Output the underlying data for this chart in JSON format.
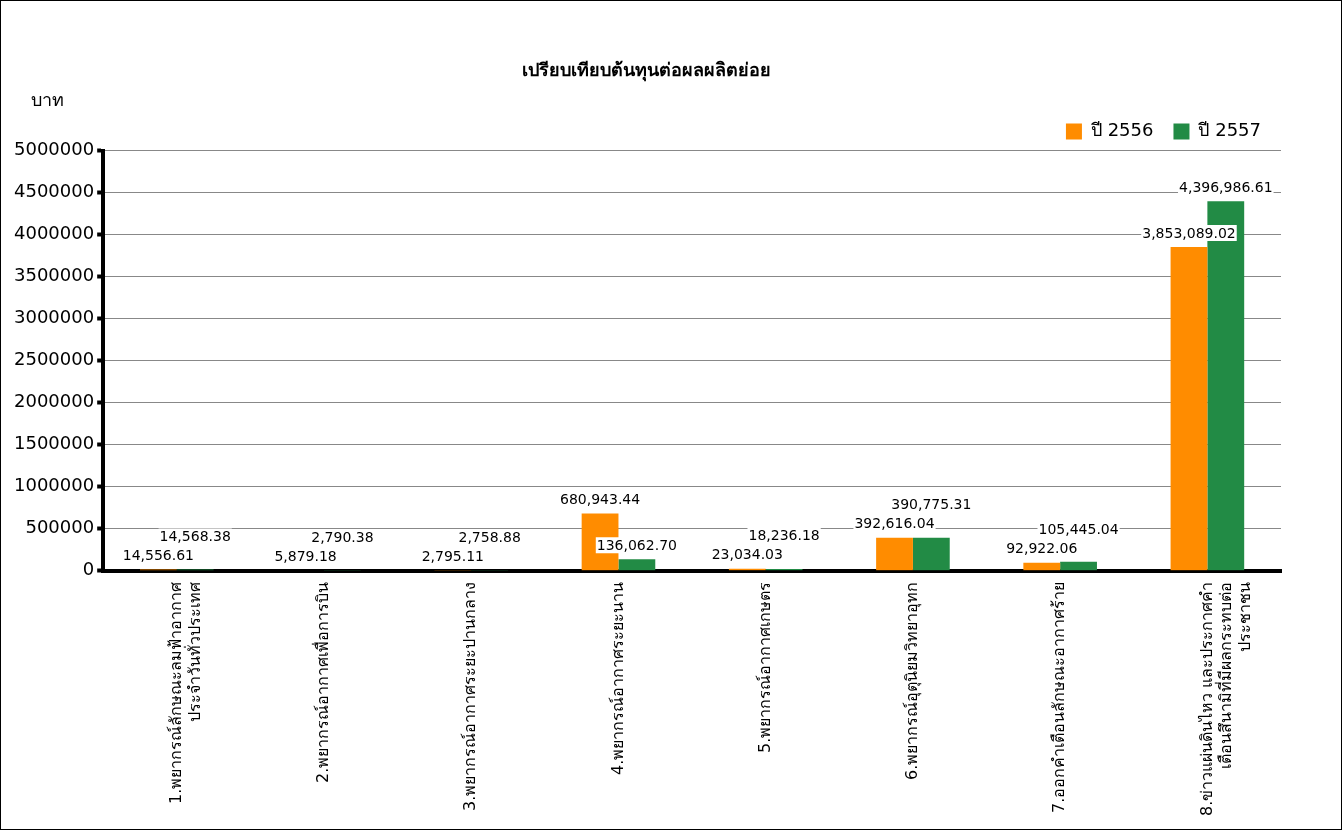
{
  "chart_data": {
    "type": "bar",
    "title": "เปรียบเทียบต้นทุนต่อผลผลิตย่อย",
    "ylabel": "บาท",
    "categories": [
      "1.พยากรณ์ลักษณะลมฟ้าอากาศ\nประจำวันทั่วประเทศ",
      "2.พยากรณ์อากาศเพื่อการบิน",
      "3.พยากรณ์อากาศระยะปานกลาง",
      "4.พยากรณ์อากาศระยะนาน",
      "5.พยากรณ์อากาศเกษตร",
      "6.พยากรณ์อุตุนิยมวิทยาอุทก",
      "7.ออกคำเตือนลักษณะอากาศร้าย",
      "8.ข่าวแผ่นดินไหว และประกาศคำ\nเตือนสึนามิที่มีผลกระทบต่อ\nประชาชน"
    ],
    "series": [
      {
        "name": "ปี 2556",
        "color": "#ff8c00",
        "values": [
          14556.61,
          5879.18,
          2795.11,
          680943.44,
          23034.03,
          392616.04,
          92922.06,
          3853089.02
        ],
        "value_labels": [
          "14,556.61",
          "5,879.18",
          "2,795.11",
          "680,943.44",
          "23,034.03",
          "392,616.04",
          "92,922.06",
          "3,853,089.02"
        ]
      },
      {
        "name": "ปี 2557",
        "color": "#228b45",
        "values": [
          14568.38,
          2790.38,
          2758.88,
          136062.7,
          18236.18,
          390775.31,
          105445.04,
          4396986.61
        ],
        "value_labels": [
          "14,568.38",
          "2,790.38",
          "2,758.88",
          "136,062.70",
          "18,236.18",
          "390,775.31",
          "105,445.04",
          "4,396,986.61"
        ]
      }
    ],
    "ylim": [
      0,
      5000000
    ],
    "yticks": [
      0,
      500000,
      1000000,
      1500000,
      2000000,
      2500000,
      3000000,
      3500000,
      4000000,
      4500000,
      5000000
    ],
    "grid": "y",
    "legend": "top right"
  }
}
